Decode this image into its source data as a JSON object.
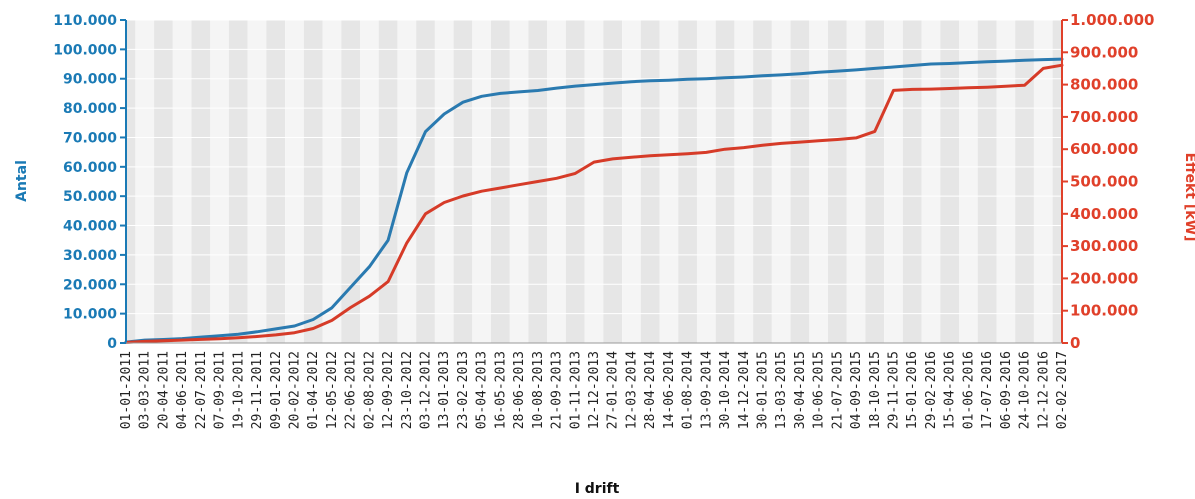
{
  "chart_data": {
    "type": "line",
    "xlabel": "I drift",
    "x_tick_labels": [
      "01-01-2011",
      "03-03-2011",
      "20-04-2011",
      "04-06-2011",
      "22-07-2011",
      "07-09-2011",
      "19-10-2011",
      "29-11-2011",
      "09-01-2012",
      "20-02-2012",
      "01-04-2012",
      "12-05-2012",
      "22-06-2012",
      "02-08-2012",
      "12-09-2012",
      "23-10-2012",
      "03-12-2012",
      "13-01-2013",
      "23-02-2013",
      "05-04-2013",
      "16-05-2013",
      "28-06-2013",
      "10-08-2013",
      "21-09-2013",
      "01-11-2013",
      "12-12-2013",
      "27-01-2014",
      "12-03-2014",
      "28-04-2014",
      "14-06-2014",
      "01-08-2014",
      "13-09-2014",
      "30-10-2014",
      "14-12-2014",
      "30-01-2015",
      "13-03-2015",
      "30-04-2015",
      "10-06-2015",
      "21-07-2015",
      "04-09-2015",
      "18-10-2015",
      "29-11-2015",
      "15-01-2016",
      "29-02-2016",
      "15-04-2016",
      "01-06-2016",
      "17-07-2016",
      "06-09-2016",
      "24-10-2016",
      "12-12-2016",
      "02-02-2017"
    ],
    "y_left": {
      "label": "Antal",
      "color": "#1a7ab5",
      "ylim": [
        0,
        110000
      ],
      "ticks": [
        "0",
        "10.000",
        "20.000",
        "30.000",
        "40.000",
        "50.000",
        "60.000",
        "70.000",
        "80.000",
        "90.000",
        "100.000",
        "110.000"
      ]
    },
    "y_right": {
      "label": "Effekt [kW]",
      "color": "#e0402a",
      "ylim": [
        0,
        1000000
      ],
      "ticks": [
        "0",
        "100.000",
        "200.000",
        "300.000",
        "400.000",
        "500.000",
        "600.000",
        "700.000",
        "800.000",
        "900.000",
        "1.000.000"
      ]
    },
    "grid": true,
    "series": [
      {
        "axis": "left",
        "color": "#2a7ab0",
        "values": [
          300,
          1000,
          1200,
          1500,
          2000,
          2500,
          3000,
          3800,
          4800,
          5800,
          8000,
          12000,
          19000,
          26000,
          35000,
          58000,
          72000,
          78000,
          82000,
          84000,
          85000,
          85500,
          86000,
          86800,
          87500,
          88000,
          88500,
          89000,
          89300,
          89500,
          89800,
          90000,
          90300,
          90600,
          91000,
          91300,
          91700,
          92200,
          92600,
          93000,
          93500,
          94000,
          94500,
          95000,
          95200,
          95500,
          95800,
          96000,
          96300,
          96500,
          96700
        ]
      },
      {
        "axis": "right",
        "color": "#d63b28",
        "values": [
          2000,
          5000,
          7000,
          9000,
          11000,
          13000,
          16000,
          20000,
          25000,
          32000,
          45000,
          70000,
          110000,
          145000,
          190000,
          310000,
          400000,
          435000,
          455000,
          470000,
          480000,
          490000,
          500000,
          510000,
          525000,
          560000,
          570000,
          575000,
          580000,
          583000,
          586000,
          590000,
          600000,
          605000,
          612000,
          618000,
          622000,
          626000,
          630000,
          635000,
          655000,
          782000,
          785000,
          786000,
          788000,
          790000,
          792000,
          795000,
          798000,
          850000,
          860000
        ]
      }
    ]
  }
}
